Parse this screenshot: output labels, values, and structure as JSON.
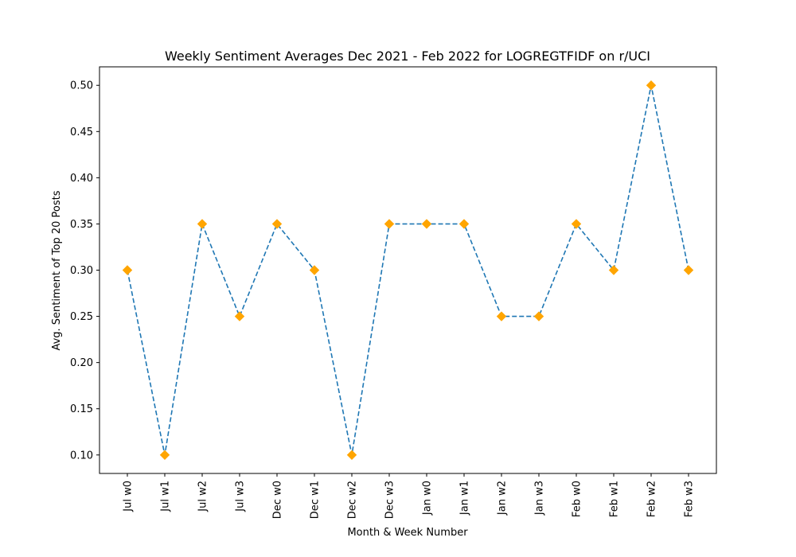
{
  "chart_data": {
    "type": "line",
    "title": "Weekly Sentiment Averages Dec 2021 - Feb 2022 for LOGREGTFIDF on r/UCI",
    "xlabel": "Month & Week Number",
    "ylabel": "Avg. Sentiment of Top 20 Posts",
    "categories": [
      "Jul w0",
      "Jul w1",
      "Jul w2",
      "Jul w3",
      "Dec w0",
      "Dec w1",
      "Dec w2",
      "Dec w3",
      "Jan w0",
      "Jan w1",
      "Jan w2",
      "Jan w3",
      "Feb w0",
      "Feb w1",
      "Feb w2",
      "Feb w3"
    ],
    "values": [
      0.3,
      0.1,
      0.35,
      0.25,
      0.35,
      0.3,
      0.1,
      0.35,
      0.35,
      0.35,
      0.25,
      0.25,
      0.35,
      0.3,
      0.5,
      0.3
    ],
    "yticks": [
      "0.10",
      "0.15",
      "0.20",
      "0.25",
      "0.30",
      "0.35",
      "0.40",
      "0.45",
      "0.50"
    ],
    "ylim": [
      0.08,
      0.52
    ],
    "grid": false,
    "line_color": "#1f77b4",
    "marker_color": "#ffa500",
    "line_style": "dashed",
    "marker": "diamond"
  }
}
